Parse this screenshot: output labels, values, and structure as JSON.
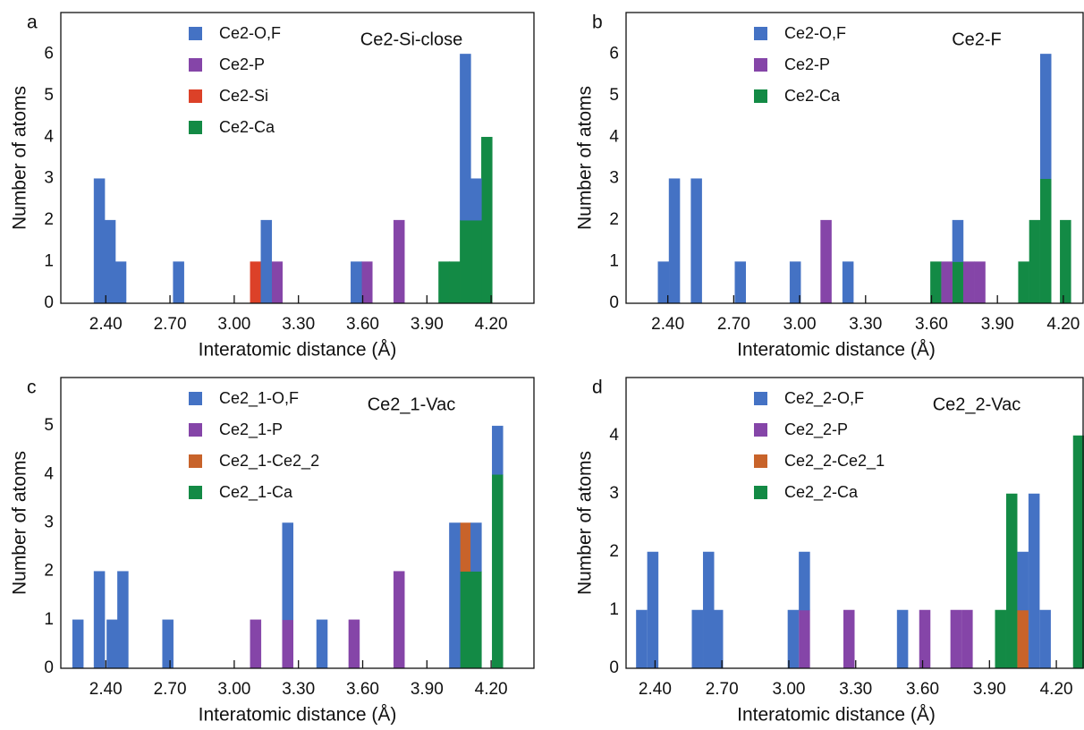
{
  "chart_data": [
    {
      "type": "bar",
      "stacked": true,
      "panel_label": "a",
      "title": "Ce2-Si-close",
      "xlabel": "Interatomic distance (Å)",
      "ylabel": "Number of atoms",
      "xlim": [
        2.19,
        4.4
      ],
      "ylim": [
        0,
        7
      ],
      "xticks": [
        {
          "value": 2.4,
          "label": "2.40"
        },
        {
          "value": 2.7,
          "label": "2.70"
        },
        {
          "value": 3.0,
          "label": "3.00"
        },
        {
          "value": 3.3,
          "label": "3.30"
        },
        {
          "value": 3.6,
          "label": "3.60"
        },
        {
          "value": 3.9,
          "label": "3.90"
        },
        {
          "value": 4.2,
          "label": "4.20"
        }
      ],
      "yticks": [
        0,
        1,
        2,
        3,
        4,
        5,
        6
      ],
      "series": [
        {
          "name": "Ce2-O,F",
          "color": "#4472c4",
          "x": [
            2.37,
            2.42,
            2.47,
            2.74,
            3.15,
            3.57,
            4.08,
            4.13
          ],
          "values": [
            3,
            2,
            1,
            1,
            2,
            1,
            4,
            1
          ]
        },
        {
          "name": "Ce2-P",
          "color": "#8545a8",
          "x": [
            3.2,
            3.62,
            3.77
          ],
          "values": [
            1,
            1,
            2
          ]
        },
        {
          "name": "Ce2-Si",
          "color": "#dc4128",
          "x": [
            3.1
          ],
          "values": [
            1
          ]
        },
        {
          "name": "Ce2-Ca",
          "color": "#138a45",
          "x": [
            3.98,
            4.03,
            4.08,
            4.13,
            4.18
          ],
          "values": [
            1,
            1,
            2,
            2,
            4
          ]
        }
      ]
    },
    {
      "type": "bar",
      "stacked": true,
      "panel_label": "b",
      "title": "Ce2-F",
      "xlabel": "Interatomic distance (Å)",
      "ylabel": "Number of atoms",
      "xlim": [
        2.21,
        4.29
      ],
      "ylim": [
        0,
        7
      ],
      "xticks": [
        {
          "value": 2.4,
          "label": "2.40"
        },
        {
          "value": 2.7,
          "label": "2.70"
        },
        {
          "value": 3.0,
          "label": "3.00"
        },
        {
          "value": 3.3,
          "label": "3.30"
        },
        {
          "value": 3.6,
          "label": "3.60"
        },
        {
          "value": 3.9,
          "label": "3.90"
        },
        {
          "value": 4.2,
          "label": "4.20"
        }
      ],
      "yticks": [
        0,
        1,
        2,
        3,
        4,
        5,
        6
      ],
      "series": [
        {
          "name": "Ce2-O,F",
          "color": "#4472c4",
          "x": [
            2.38,
            2.43,
            2.53,
            2.73,
            2.98,
            3.22,
            3.72,
            4.12
          ],
          "values": [
            1,
            3,
            3,
            1,
            1,
            1,
            1,
            3
          ]
        },
        {
          "name": "Ce2-P",
          "color": "#8545a8",
          "x": [
            3.12,
            3.67,
            3.77,
            3.82
          ],
          "values": [
            2,
            1,
            1,
            1
          ]
        },
        {
          "name": "Ce2-Ca",
          "color": "#138a45",
          "x": [
            3.62,
            3.72,
            4.02,
            4.07,
            4.12,
            4.21
          ],
          "values": [
            1,
            1,
            1,
            2,
            3,
            2
          ]
        }
      ]
    },
    {
      "type": "bar",
      "stacked": true,
      "panel_label": "c",
      "title": "Ce2_1-Vac",
      "xlabel": "Interatomic distance (Å)",
      "ylabel": "Number of atoms",
      "xlim": [
        2.19,
        4.4
      ],
      "ylim": [
        0,
        6
      ],
      "xticks": [
        {
          "value": 2.4,
          "label": "2.40"
        },
        {
          "value": 2.7,
          "label": "2.70"
        },
        {
          "value": 3.0,
          "label": "3.00"
        },
        {
          "value": 3.3,
          "label": "3.30"
        },
        {
          "value": 3.6,
          "label": "3.60"
        },
        {
          "value": 3.9,
          "label": "3.90"
        },
        {
          "value": 4.2,
          "label": "4.20"
        }
      ],
      "yticks": [
        0,
        1,
        2,
        3,
        4,
        5
      ],
      "series": [
        {
          "name": "Ce2_1-O,F",
          "color": "#4472c4",
          "x": [
            2.27,
            2.37,
            2.43,
            2.48,
            2.69,
            3.25,
            3.41,
            4.03,
            4.13,
            4.23
          ],
          "values": [
            1,
            2,
            1,
            2,
            1,
            2,
            1,
            3,
            1,
            1
          ]
        },
        {
          "name": "Ce2_1-P",
          "color": "#8545a8",
          "x": [
            3.1,
            3.25,
            3.56,
            3.77
          ],
          "values": [
            1,
            1,
            1,
            2
          ]
        },
        {
          "name": "Ce2_1-Ce2_2",
          "color": "#c8632a",
          "x": [
            4.08
          ],
          "values": [
            1
          ]
        },
        {
          "name": "Ce2_1-Ca",
          "color": "#138a45",
          "x": [
            4.08,
            4.13,
            4.23
          ],
          "values": [
            2,
            2,
            4
          ]
        }
      ]
    },
    {
      "type": "bar",
      "stacked": true,
      "panel_label": "d",
      "title": "Ce2_2-Vac",
      "xlabel": "Interatomic distance (Å)",
      "ylabel": "Number of atoms",
      "xlim": [
        2.27,
        4.32
      ],
      "ylim": [
        0,
        5
      ],
      "xticks": [
        {
          "value": 2.4,
          "label": "2.40"
        },
        {
          "value": 2.7,
          "label": "2.70"
        },
        {
          "value": 3.0,
          "label": "3.00"
        },
        {
          "value": 3.3,
          "label": "3.30"
        },
        {
          "value": 3.6,
          "label": "3.60"
        },
        {
          "value": 3.9,
          "label": "3.90"
        },
        {
          "value": 4.2,
          "label": "4.20"
        }
      ],
      "yticks": [
        0,
        1,
        2,
        3,
        4
      ],
      "series": [
        {
          "name": "Ce2_2-O,F",
          "color": "#4472c4",
          "x": [
            2.34,
            2.39,
            2.59,
            2.64,
            2.68,
            3.02,
            3.07,
            3.51,
            4.05,
            4.1,
            4.15
          ],
          "values": [
            1,
            2,
            1,
            2,
            1,
            1,
            1,
            1,
            1,
            3,
            1
          ]
        },
        {
          "name": "Ce2_2-P",
          "color": "#8545a8",
          "x": [
            3.07,
            3.27,
            3.61,
            3.75,
            3.8
          ],
          "values": [
            1,
            1,
            1,
            1,
            1
          ]
        },
        {
          "name": "Ce2_2-Ce2_1",
          "color": "#c8632a",
          "x": [
            4.05
          ],
          "values": [
            1
          ]
        },
        {
          "name": "Ce2_2-Ca",
          "color": "#138a45",
          "x": [
            3.95,
            4.0,
            4.3
          ],
          "values": [
            1,
            3,
            4
          ]
        }
      ]
    }
  ]
}
